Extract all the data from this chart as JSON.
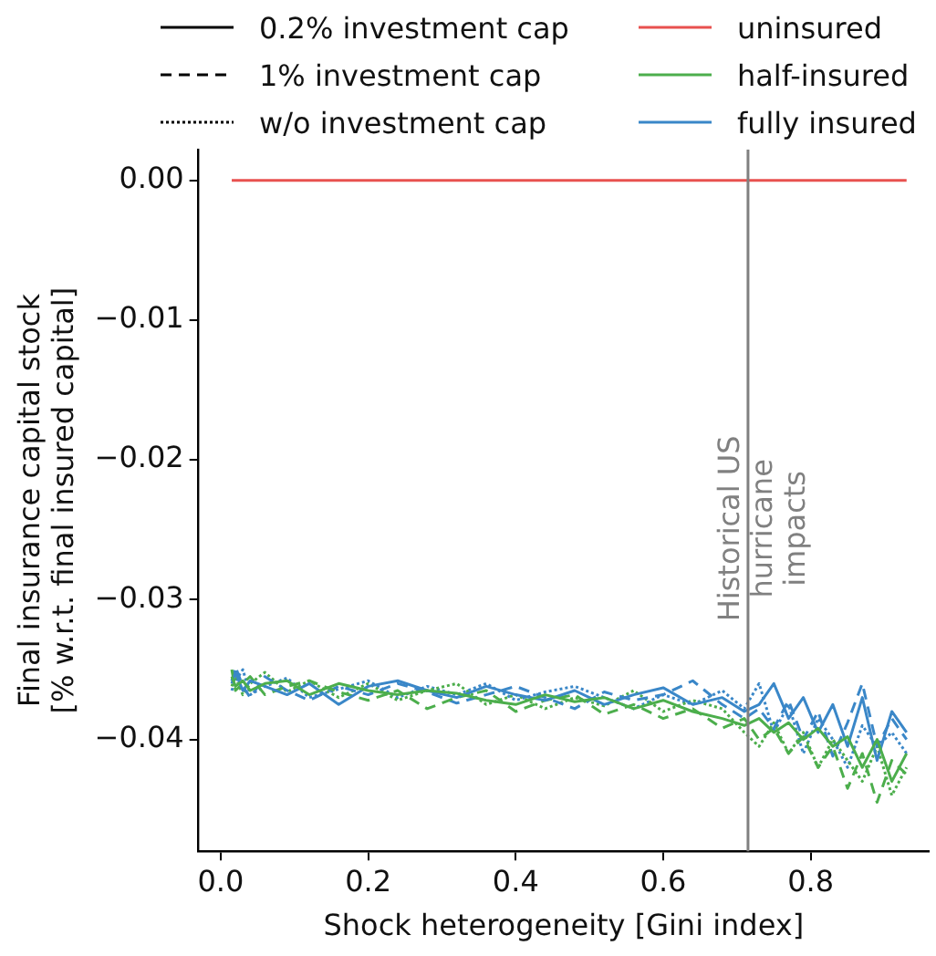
{
  "chart_data": {
    "type": "line",
    "xlabel": "Shock heterogeneity [Gini index]",
    "ylabel": "Final insurance capital stock\n[% w.r.t. final insured capital]",
    "x": [
      0.015,
      0.02,
      0.03,
      0.04,
      0.06,
      0.09,
      0.12,
      0.16,
      0.2,
      0.24,
      0.28,
      0.32,
      0.36,
      0.4,
      0.44,
      0.48,
      0.52,
      0.56,
      0.6,
      0.64,
      0.68,
      0.71,
      0.73,
      0.75,
      0.77,
      0.79,
      0.81,
      0.83,
      0.85,
      0.87,
      0.89,
      0.91,
      0.93
    ],
    "xlim": [
      -0.03,
      0.96
    ],
    "xticks": [
      {
        "value": 0,
        "label": "0.0"
      },
      0.2,
      0.4,
      0.6,
      0.8
    ],
    "ylim": [
      -0.048,
      0.0022
    ],
    "yticks": [
      {
        "value": 0,
        "label": "0.00"
      },
      {
        "value": -0.01,
        "label": "−0.01"
      },
      {
        "value": -0.02,
        "label": "−0.02"
      },
      {
        "value": -0.03,
        "label": "−0.03"
      },
      {
        "value": -0.04,
        "label": "−0.04"
      }
    ],
    "grid": false,
    "legend": "top",
    "marker": "none",
    "ref_lines": [
      {
        "axis": "x",
        "value": 0.715,
        "label": "Historical US\nhurricane\nimpacts",
        "color": "#808080"
      }
    ],
    "series": [
      {
        "name": "0.2% investment cap",
        "color": "#000000",
        "line_style": "solid",
        "values": [
          null,
          null,
          null,
          null,
          null,
          null,
          null,
          null,
          null,
          null,
          null,
          null,
          null,
          null,
          null,
          null,
          null,
          null,
          null,
          null,
          null,
          null,
          null,
          null,
          null,
          null,
          null,
          null,
          null,
          null,
          null,
          null,
          null
        ]
      },
      {
        "name": "1% investment cap",
        "color": "#000000",
        "line_style": "dashed",
        "values": [
          null,
          null,
          null,
          null,
          null,
          null,
          null,
          null,
          null,
          null,
          null,
          null,
          null,
          null,
          null,
          null,
          null,
          null,
          null,
          null,
          null,
          null,
          null,
          null,
          null,
          null,
          null,
          null,
          null,
          null,
          null,
          null,
          null
        ]
      },
      {
        "name": "w/o investment cap",
        "color": "#000000",
        "line_style": "dotted",
        "values": [
          null,
          null,
          null,
          null,
          null,
          null,
          null,
          null,
          null,
          null,
          null,
          null,
          null,
          null,
          null,
          null,
          null,
          null,
          null,
          null,
          null,
          null,
          null,
          null,
          null,
          null,
          null,
          null,
          null,
          null,
          null,
          null,
          null
        ]
      },
      {
        "name": "uninsured",
        "color": "#e8514f",
        "line_style": "solid",
        "values": [
          0,
          0,
          0,
          0,
          0,
          0,
          0,
          0,
          0,
          0,
          0,
          0,
          0,
          0,
          0,
          0,
          0,
          0,
          0,
          0,
          0,
          0,
          0,
          0,
          0,
          0,
          0,
          0,
          0,
          0,
          0,
          0,
          0
        ]
      },
      {
        "name": "half-insured",
        "color": "#4cae4c",
        "line_style": "solid",
        "values": [
          -0.0355,
          -0.0362,
          -0.0358,
          -0.0365,
          -0.036,
          -0.0358,
          -0.0368,
          -0.036,
          -0.0365,
          -0.0368,
          -0.0365,
          -0.0367,
          -0.0372,
          -0.0375,
          -0.0368,
          -0.0373,
          -0.037,
          -0.0378,
          -0.0372,
          -0.038,
          -0.0385,
          -0.039,
          -0.0385,
          -0.0395,
          -0.0388,
          -0.04,
          -0.0392,
          -0.0405,
          -0.0398,
          -0.042,
          -0.04,
          -0.043,
          -0.041
        ]
      },
      {
        "name": "fully insured",
        "color": "#3a87c8",
        "line_style": "solid",
        "values": [
          -0.036,
          -0.0352,
          -0.0365,
          -0.0358,
          -0.0362,
          -0.0368,
          -0.036,
          -0.0375,
          -0.0362,
          -0.0358,
          -0.0365,
          -0.037,
          -0.0362,
          -0.0368,
          -0.0372,
          -0.0365,
          -0.0375,
          -0.0368,
          -0.0363,
          -0.0375,
          -0.037,
          -0.038,
          -0.0375,
          -0.036,
          -0.0385,
          -0.037,
          -0.0395,
          -0.0375,
          -0.0405,
          -0.037,
          -0.0415,
          -0.038,
          -0.0395
        ]
      },
      {
        "color": "#4cae4c",
        "line_style": "dashed",
        "values": [
          -0.035,
          -0.0365,
          -0.036,
          -0.0355,
          -0.0368,
          -0.0362,
          -0.0358,
          -0.0366,
          -0.0372,
          -0.0365,
          -0.0378,
          -0.037,
          -0.0365,
          -0.038,
          -0.0372,
          -0.0368,
          -0.0382,
          -0.0375,
          -0.0385,
          -0.0378,
          -0.0392,
          -0.0385,
          -0.04,
          -0.0392,
          -0.041,
          -0.0398,
          -0.042,
          -0.0405,
          -0.0435,
          -0.041,
          -0.0445,
          -0.0415,
          -0.0425
        ]
      },
      {
        "color": "#3a87c8",
        "line_style": "dashed",
        "values": [
          -0.0358,
          -0.0348,
          -0.0362,
          -0.037,
          -0.0355,
          -0.0365,
          -0.0372,
          -0.0362,
          -0.0368,
          -0.036,
          -0.0366,
          -0.0374,
          -0.0368,
          -0.0362,
          -0.037,
          -0.0378,
          -0.0366,
          -0.0372,
          -0.0368,
          -0.0358,
          -0.0375,
          -0.0385,
          -0.0378,
          -0.0392,
          -0.0372,
          -0.04,
          -0.038,
          -0.0412,
          -0.0388,
          -0.036,
          -0.0405,
          -0.0385,
          -0.04
        ]
      },
      {
        "color": "#4cae4c",
        "line_style": "dotted",
        "values": [
          -0.0362,
          -0.0355,
          -0.0368,
          -0.036,
          -0.0352,
          -0.0366,
          -0.0358,
          -0.037,
          -0.036,
          -0.0372,
          -0.0365,
          -0.036,
          -0.0375,
          -0.0368,
          -0.0378,
          -0.037,
          -0.0376,
          -0.0365,
          -0.038,
          -0.0372,
          -0.0378,
          -0.0395,
          -0.0405,
          -0.0388,
          -0.041,
          -0.0395,
          -0.042,
          -0.04,
          -0.0415,
          -0.043,
          -0.0405,
          -0.044,
          -0.042
        ]
      },
      {
        "color": "#3a87c8",
        "line_style": "dotted",
        "values": [
          -0.0365,
          -0.0358,
          -0.035,
          -0.0368,
          -0.0362,
          -0.0356,
          -0.037,
          -0.0364,
          -0.0358,
          -0.037,
          -0.0362,
          -0.0368,
          -0.036,
          -0.0372,
          -0.0366,
          -0.0362,
          -0.037,
          -0.0378,
          -0.0368,
          -0.0375,
          -0.0365,
          -0.0378,
          -0.036,
          -0.0395,
          -0.0375,
          -0.041,
          -0.0385,
          -0.04,
          -0.042,
          -0.039,
          -0.0405,
          -0.0395,
          -0.041
        ]
      }
    ]
  }
}
